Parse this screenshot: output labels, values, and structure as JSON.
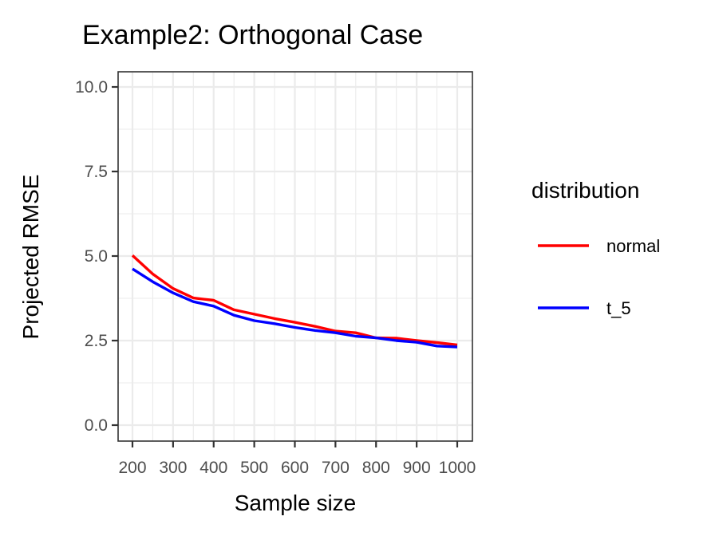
{
  "chart_data": {
    "type": "line",
    "title": "Example2: Orthogonal Case",
    "xlabel": "Sample size",
    "ylabel": "Projected RMSE",
    "xlim": [
      200,
      1000
    ],
    "ylim": [
      0,
      10
    ],
    "xticks": [
      200,
      300,
      400,
      500,
      600,
      700,
      800,
      900,
      1000
    ],
    "xtick_labels": [
      "200",
      "300",
      "400",
      "500",
      "600",
      "700",
      "800",
      "900",
      "1000"
    ],
    "yticks": [
      0,
      2.5,
      5,
      7.5,
      10
    ],
    "ytick_labels": [
      "0.0",
      "2.5",
      "5.0",
      "7.5",
      "10.0"
    ],
    "grid": true,
    "legend": {
      "title": "distribution",
      "position": "right"
    },
    "x": [
      200,
      250,
      300,
      350,
      400,
      450,
      500,
      550,
      600,
      650,
      700,
      750,
      800,
      850,
      900,
      950,
      1000
    ],
    "series": [
      {
        "name": "normal",
        "color": "#ff0000",
        "values": [
          5.02,
          4.47,
          4.04,
          3.76,
          3.69,
          3.41,
          3.28,
          3.15,
          3.04,
          2.92,
          2.78,
          2.73,
          2.58,
          2.57,
          2.5,
          2.44,
          2.37
        ]
      },
      {
        "name": "t_5",
        "color": "#0000ff",
        "values": [
          4.62,
          4.24,
          3.91,
          3.65,
          3.52,
          3.25,
          3.09,
          3.0,
          2.89,
          2.8,
          2.73,
          2.63,
          2.58,
          2.5,
          2.45,
          2.34,
          2.31
        ]
      }
    ]
  }
}
